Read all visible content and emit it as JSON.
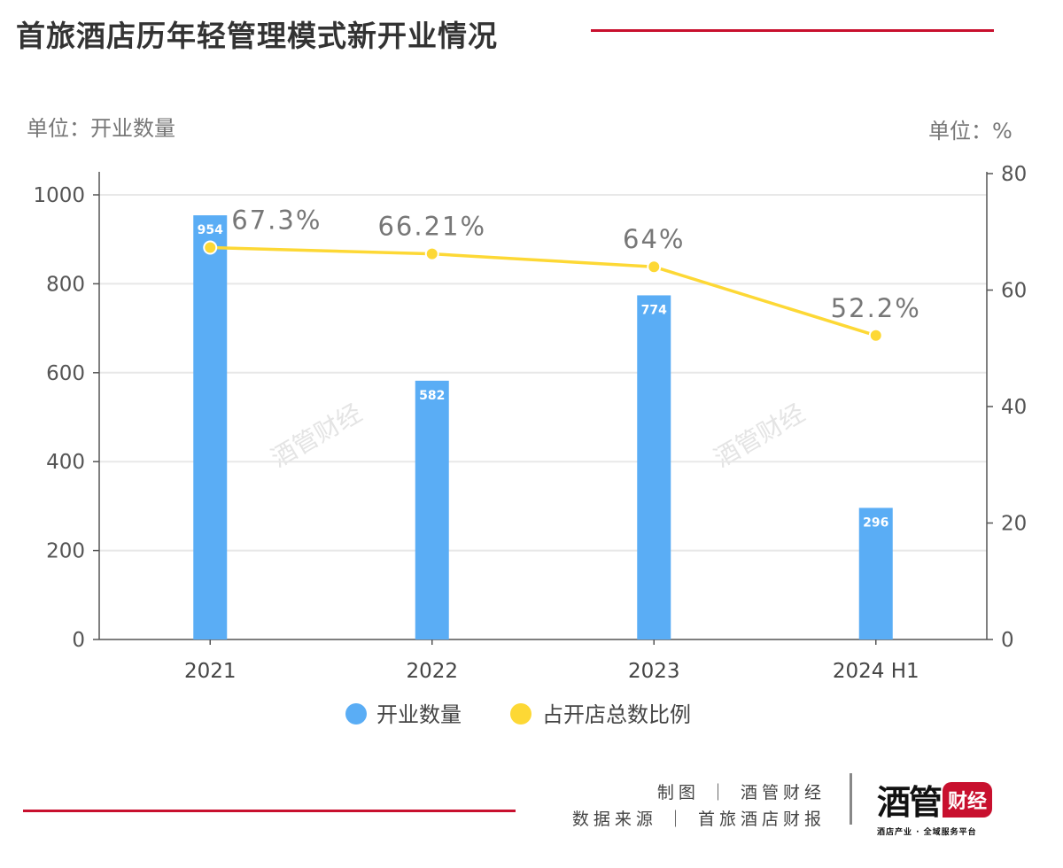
{
  "header": {
    "title": "首旅酒店历年轻管理模式新开业情况"
  },
  "units": {
    "left": "单位：开业数量",
    "right": "单位：%"
  },
  "watermark": "酒管财经",
  "footer": {
    "credit_line1": "制图 ｜ 酒管财经",
    "credit_line2": "数据来源 ｜ 首旅酒店财报",
    "logo_main": "酒管",
    "logo_badge": "财经",
    "logo_tagline": "酒店产业 · 全域服务平台"
  },
  "colors": {
    "bar": "#5aadf5",
    "line": "#fdd835",
    "accent": "#c8102e"
  },
  "chart_data": {
    "type": "bar+line",
    "title": "首旅酒店历年轻管理模式新开业情况",
    "categories": [
      "2021",
      "2022",
      "2023",
      "2024 H1"
    ],
    "series": [
      {
        "name": "开业数量",
        "type": "bar",
        "axis": "left",
        "values": [
          954,
          582,
          774,
          296
        ],
        "labels": [
          "954",
          "582",
          "774",
          "296"
        ]
      },
      {
        "name": "占开店总数比例",
        "type": "line",
        "axis": "right",
        "values": [
          67.3,
          66.21,
          64,
          52.2
        ],
        "labels": [
          "67.3%",
          "66.21%",
          "64%",
          "52.2%"
        ]
      }
    ],
    "left_axis": {
      "label": "单位：开业数量",
      "ylim": [
        0,
        1000
      ],
      "ticks": [
        0,
        200,
        400,
        600,
        800,
        1000
      ]
    },
    "right_axis": {
      "label": "单位：%",
      "ylim": [
        0,
        80
      ],
      "ticks": [
        0,
        20,
        40,
        60,
        80
      ]
    },
    "grid": true,
    "legend": "bottom"
  }
}
